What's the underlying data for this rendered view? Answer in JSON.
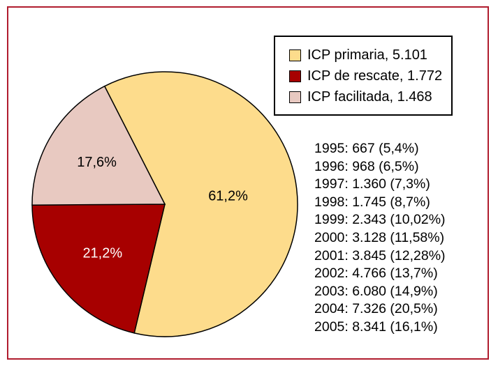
{
  "chart_data": {
    "type": "pie",
    "slices": [
      {
        "label": "ICP primaria",
        "value": 61.2,
        "pct_label": "61,2%",
        "color": "#fddc8c",
        "label_color": "#000000"
      },
      {
        "label": "ICP de rescate",
        "value": 21.2,
        "pct_label": "21,2%",
        "color": "#a70000",
        "label_color": "#ffffff"
      },
      {
        "label": "ICP facilitada",
        "value": 17.6,
        "pct_label": "17,6%",
        "color": "#e8c9c1",
        "label_color": "#000000"
      }
    ],
    "legend": [
      {
        "text": "ICP primaria, 5.101",
        "color": "#fddc8c"
      },
      {
        "text": "ICP de rescate, 1.772",
        "color": "#a70000"
      },
      {
        "text": "ICP facilitada, 1.468",
        "color": "#e8c9c1"
      }
    ],
    "annotations": [
      "1995: 667 (5,4%)",
      "1996: 968 (6,5%)",
      "1997: 1.360 (7,3%)",
      "1998: 1.745 (8,7%)",
      "1999: 2.343 (10,02%)",
      "2000: 3.128 (11,58%)",
      "2001: 3.845 (12,28%)",
      "2002: 4.766 (13,7%)",
      "2003: 6.080 (14,9%)",
      "2004: 7.326 (20,5%)",
      "2005: 8.341 (16,1%)"
    ]
  },
  "colors": {
    "frame": "#b01c2e",
    "edge": "#000000"
  }
}
